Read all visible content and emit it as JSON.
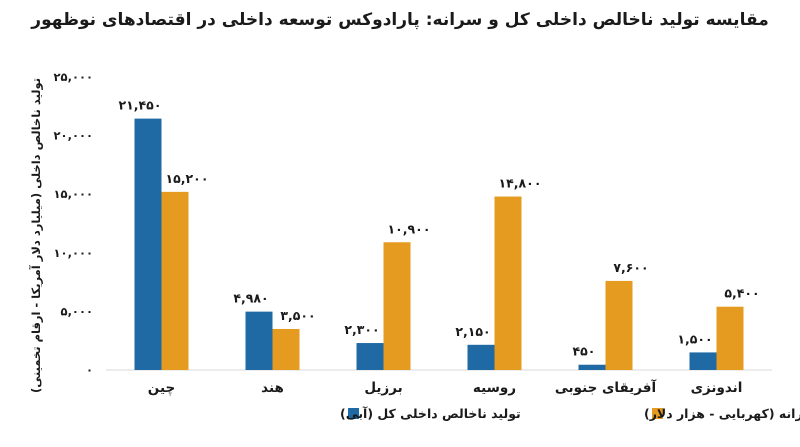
{
  "title": "مقایسه تولید ناخالص داخلی کل و سرانه: پارادوکس توسعه داخلی در اقتصادهای نوظهور",
  "chart_data": {
    "type": "bar",
    "title": "مقایسه تولید ناخالص داخلی کل و سرانه: پارادوکس توسعه داخلی در اقتصادهای نوظهور",
    "xlabel": "",
    "ylabel": "تولید ناخالص داخلی (میلیارد دلار آمریکا - ارقام تخمینی)",
    "ylim": [
      0,
      25000
    ],
    "yticks": [
      0,
      5000,
      10000,
      15000,
      20000,
      25000
    ],
    "ytick_labels": [
      "۰",
      "۵,۰۰۰",
      "۱۰,۰۰۰",
      "۱۵,۰۰۰",
      "۲۰,۰۰۰",
      "۲۵,۰۰۰"
    ],
    "categories": [
      "چین",
      "هند",
      "برزیل",
      "روسیه",
      "آفریقای جنوبی",
      "اندونزی"
    ],
    "series": [
      {
        "name": "تولید ناخالص داخلی کل (آبی)",
        "color": "#1f6aa5",
        "values": [
          21450,
          4980,
          2300,
          2150,
          450,
          1500
        ],
        "labels": [
          "۲۱,۴۵۰",
          "۴,۹۸۰",
          "۲,۳۰۰",
          "۲,۱۵۰",
          "۴۵۰",
          "۱,۵۰۰"
        ]
      },
      {
        "name": "تولید ناخالص داخلی سرانه (کهربایی - هزار دلار)",
        "color": "#e49b1f",
        "values": [
          15200,
          3500,
          10900,
          14800,
          7600,
          5400
        ],
        "labels": [
          "۱۵,۲۰۰",
          "۳,۵۰۰",
          "۱۰,۹۰۰",
          "۱۴,۸۰۰",
          "۷,۶۰۰",
          "۵,۴۰۰"
        ]
      }
    ],
    "legend_position": "bottom",
    "grid": false
  }
}
